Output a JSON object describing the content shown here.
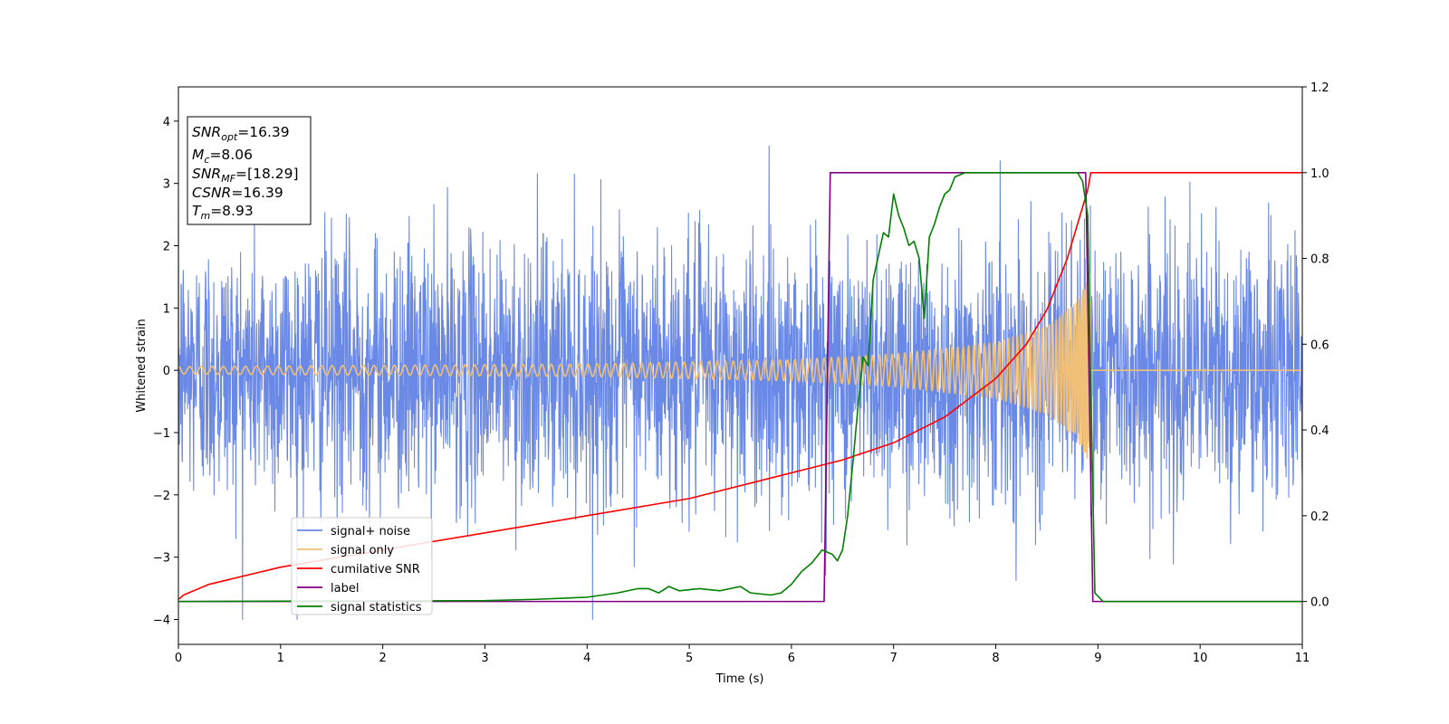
{
  "chart_data": {
    "type": "line",
    "xlabel": "Time (s)",
    "ylabel": "Whitened strain",
    "xlim": [
      0,
      11
    ],
    "ylim_left": [
      -4.4,
      4.55
    ],
    "ylim_right": [
      -0.1,
      1.2
    ],
    "x_ticks": [
      0,
      1,
      2,
      3,
      4,
      5,
      6,
      7,
      8,
      9,
      10,
      11
    ],
    "y_ticks_left": [
      -4,
      -3,
      -2,
      -1,
      0,
      1,
      2,
      3,
      4
    ],
    "y_ticks_right": [
      0.0,
      0.2,
      0.4,
      0.6,
      0.8,
      1.0,
      1.2
    ],
    "x_tick_labels": [
      "0",
      "1",
      "2",
      "3",
      "4",
      "5",
      "6",
      "7",
      "8",
      "9",
      "10",
      "11"
    ],
    "y_tick_labels_left": [
      "−4",
      "−3",
      "−2",
      "−1",
      "0",
      "1",
      "2",
      "3",
      "4"
    ],
    "y_tick_labels_right": [
      "0.0",
      "0.2",
      "0.4",
      "0.6",
      "0.8",
      "1.0",
      "1.2"
    ],
    "annotation_box": {
      "lines": [
        {
          "sym": "SNR",
          "sub": "opt",
          "value": "=16.39"
        },
        {
          "sym": "M",
          "sub": "c",
          "value": "=8.06"
        },
        {
          "sym": "SNR",
          "sub": "MF",
          "value": "=[18.29]"
        },
        {
          "sym": "CSNR",
          "sub": "",
          "value": "=16.39"
        },
        {
          "sym": "T",
          "sub": "m",
          "value": "=8.93"
        }
      ]
    },
    "legend": {
      "placement": "lower-left",
      "entries": [
        {
          "label": "signal+ noise",
          "color": "#6a89e6"
        },
        {
          "label": "signal only",
          "color": "#f0c078"
        },
        {
          "label": "cumilative SNR",
          "color": "#ff0000"
        },
        {
          "label": "label",
          "color": "#800080"
        },
        {
          "label": "signal statistics",
          "color": "#008000"
        }
      ]
    },
    "series": [
      {
        "name": "signal+ noise",
        "axis": "left",
        "color": "#6a89e6",
        "kind": "noise",
        "std": 1.0,
        "t_end": 11
      },
      {
        "name": "signal only",
        "axis": "left",
        "color": "#f0c078",
        "kind": "chirp",
        "t_merge": 8.93,
        "envelope": {
          "x": [
            0,
            2,
            4,
            6,
            7,
            8,
            8.5,
            8.8,
            8.93
          ],
          "y": [
            0.06,
            0.08,
            0.1,
            0.17,
            0.26,
            0.45,
            0.7,
            1.1,
            1.6
          ]
        }
      },
      {
        "name": "cumilative SNR",
        "axis": "right",
        "color": "#ff0000",
        "x": [
          0,
          0.05,
          0.3,
          1,
          2,
          3,
          4,
          5,
          6,
          6.5,
          7,
          7.5,
          8,
          8.3,
          8.5,
          8.7,
          8.8,
          8.9,
          8.93,
          9,
          10,
          11
        ],
        "y": [
          0.005,
          0.015,
          0.04,
          0.08,
          0.12,
          0.16,
          0.2,
          0.24,
          0.3,
          0.33,
          0.37,
          0.43,
          0.52,
          0.6,
          0.68,
          0.8,
          0.88,
          0.96,
          1.0,
          1.0,
          1.0,
          1.0
        ]
      },
      {
        "name": "label",
        "axis": "right",
        "color": "#800080",
        "x": [
          0,
          6.32,
          6.38,
          8.88,
          8.95,
          11
        ],
        "y": [
          0,
          0,
          1,
          1,
          0,
          0
        ]
      },
      {
        "name": "signal statistics",
        "axis": "right",
        "color": "#008000",
        "x": [
          0,
          3,
          3.5,
          4,
          4.3,
          4.5,
          4.6,
          4.7,
          4.8,
          4.9,
          5.1,
          5.3,
          5.5,
          5.6,
          5.8,
          5.9,
          6.0,
          6.1,
          6.2,
          6.3,
          6.4,
          6.45,
          6.5,
          6.55,
          6.6,
          6.65,
          6.7,
          6.75,
          6.8,
          6.9,
          6.95,
          7.0,
          7.05,
          7.1,
          7.15,
          7.2,
          7.25,
          7.3,
          7.35,
          7.4,
          7.45,
          7.5,
          7.55,
          7.6,
          7.7,
          8.0,
          8.5,
          8.8,
          8.85,
          8.9,
          8.93,
          8.97,
          9.05,
          10,
          11
        ],
        "y": [
          0,
          0.002,
          0.005,
          0.01,
          0.02,
          0.03,
          0.03,
          0.02,
          0.035,
          0.025,
          0.03,
          0.025,
          0.035,
          0.02,
          0.015,
          0.02,
          0.04,
          0.07,
          0.09,
          0.12,
          0.11,
          0.095,
          0.12,
          0.2,
          0.32,
          0.45,
          0.57,
          0.55,
          0.75,
          0.86,
          0.85,
          0.95,
          0.9,
          0.87,
          0.83,
          0.84,
          0.8,
          0.66,
          0.85,
          0.88,
          0.92,
          0.95,
          0.96,
          0.99,
          1.0,
          1.0,
          1.0,
          1.0,
          0.98,
          0.9,
          0.5,
          0.02,
          0.0,
          0.0,
          0.0
        ]
      }
    ]
  }
}
